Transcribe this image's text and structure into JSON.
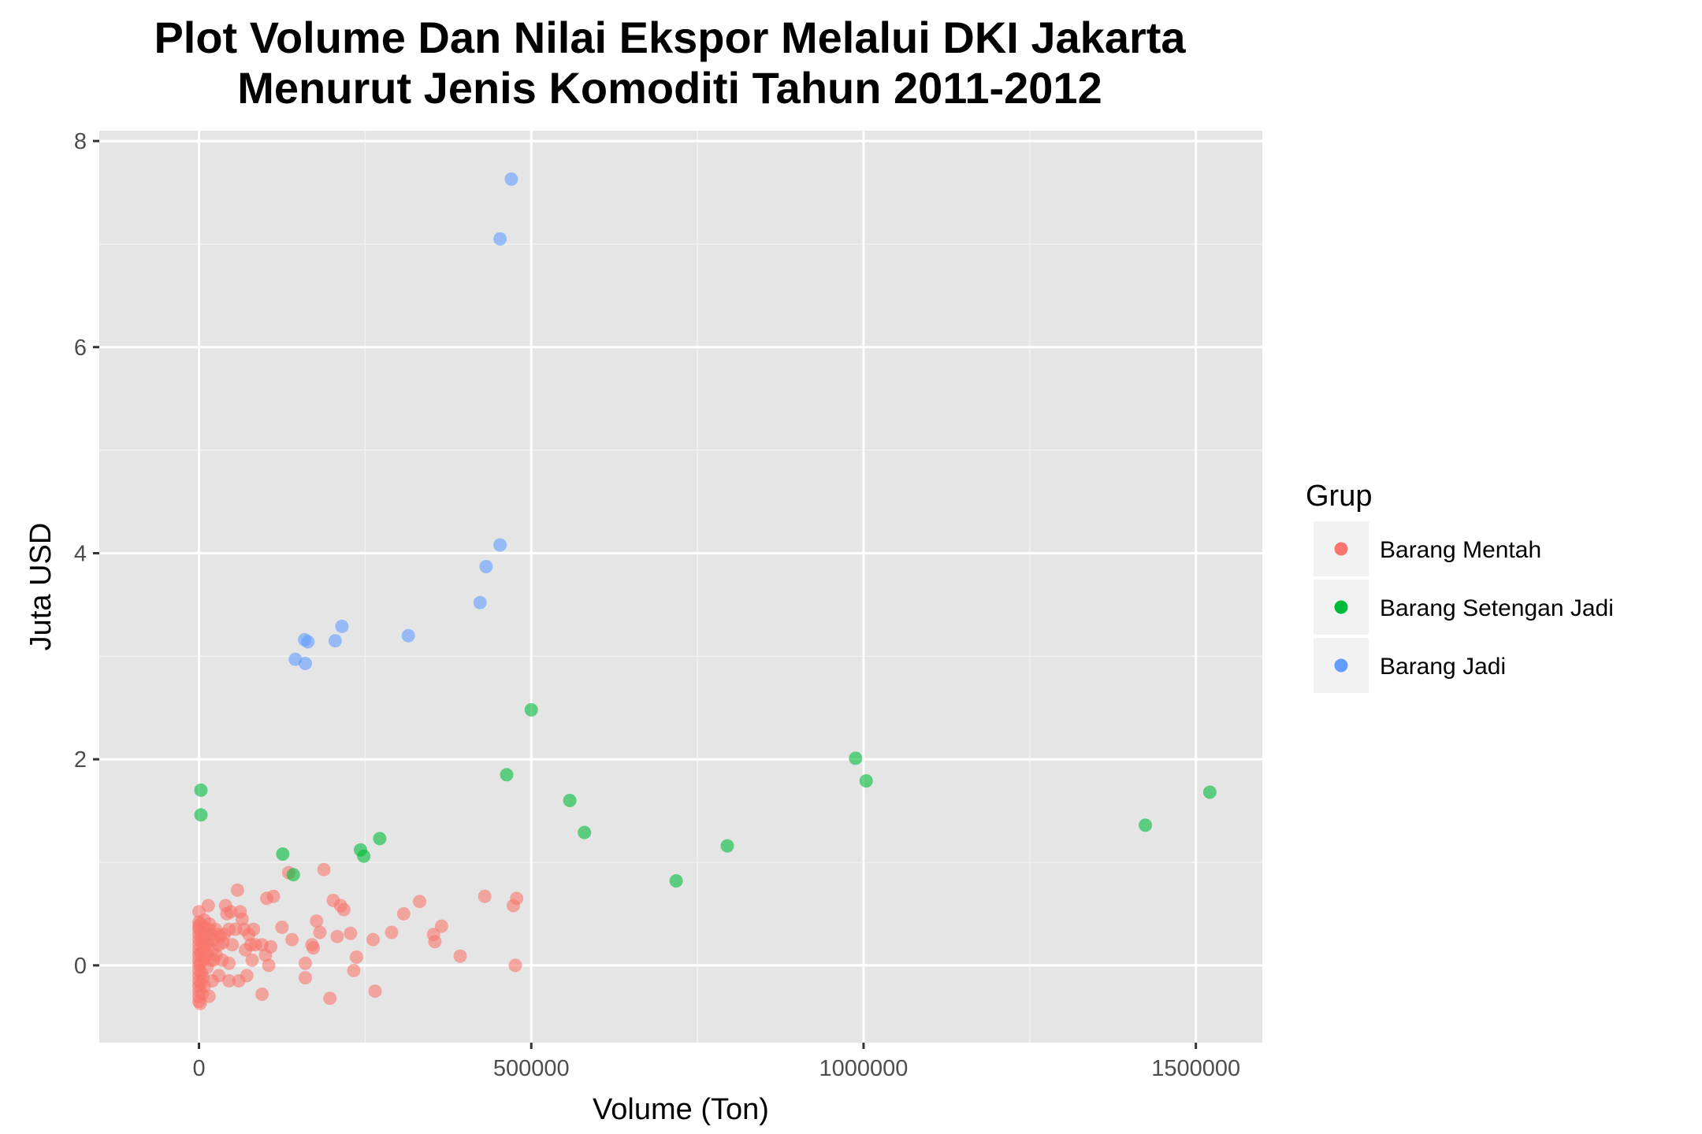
{
  "chart_data": {
    "type": "scatter",
    "title_lines": [
      "Plot Volume Dan Nilai Ekspor Melalui DKI Jakarta",
      "Menurut Jenis Komoditi Tahun 2011-2012"
    ],
    "xlabel": "Volume (Ton)",
    "ylabel": "Juta USD",
    "xlim": [
      -150000,
      1600000
    ],
    "ylim": [
      -0.75,
      8.1
    ],
    "x_ticks": [
      0,
      500000,
      1000000,
      1500000
    ],
    "x_tick_labels": [
      "0",
      "500000",
      "1000000",
      "1500000"
    ],
    "y_ticks": [
      0,
      2,
      4,
      6,
      8
    ],
    "y_tick_labels": [
      "0",
      "2",
      "4",
      "6",
      "8"
    ],
    "grid": true,
    "background": "#e5e5e5",
    "legend": {
      "title": "Grup",
      "position": "right"
    },
    "series": [
      {
        "name": "Barang Mentah",
        "color": "#F8766D",
        "points": [
          [
            0,
            0.52
          ],
          [
            0,
            0.42
          ],
          [
            0,
            0.38
          ],
          [
            0,
            0.35
          ],
          [
            0,
            0.3
          ],
          [
            0,
            0.25
          ],
          [
            0,
            0.2
          ],
          [
            0,
            0.15
          ],
          [
            0,
            0.1
          ],
          [
            0,
            0.05
          ],
          [
            0,
            0.0
          ],
          [
            0,
            -0.05
          ],
          [
            0,
            -0.1
          ],
          [
            0,
            -0.15
          ],
          [
            0,
            -0.2
          ],
          [
            0,
            -0.25
          ],
          [
            0,
            -0.3
          ],
          [
            0,
            -0.35
          ],
          [
            2000,
            0.4
          ],
          [
            3000,
            0.32
          ],
          [
            4000,
            0.27
          ],
          [
            5000,
            0.22
          ],
          [
            3000,
            0.12
          ],
          [
            2000,
            0.02
          ],
          [
            4000,
            -0.08
          ],
          [
            3000,
            -0.18
          ],
          [
            5000,
            -0.28
          ],
          [
            2000,
            -0.37
          ],
          [
            6000,
            0.05
          ],
          [
            6000,
            -0.12
          ],
          [
            8000,
            0.44
          ],
          [
            9000,
            0.36
          ],
          [
            10000,
            0.3
          ],
          [
            11000,
            0.25
          ],
          [
            7000,
            0.16
          ],
          [
            9000,
            0.08
          ],
          [
            12000,
            -0.02
          ],
          [
            8000,
            -0.2
          ],
          [
            10000,
            0.2
          ],
          [
            13000,
            0.1
          ],
          [
            15000,
            0.35
          ],
          [
            14000,
            0.2
          ],
          [
            14000,
            0.58
          ],
          [
            16000,
            0.4
          ],
          [
            18000,
            0.3
          ],
          [
            15000,
            -0.3
          ],
          [
            20000,
            0.15
          ],
          [
            22000,
            0.25
          ],
          [
            25000,
            0.35
          ],
          [
            26000,
            0.1
          ],
          [
            28000,
            0.3
          ],
          [
            30000,
            0.2
          ],
          [
            32000,
            0.28
          ],
          [
            35000,
            0.05
          ],
          [
            36000,
            0.22
          ],
          [
            38000,
            0.3
          ],
          [
            30000,
            -0.1
          ],
          [
            20000,
            -0.15
          ],
          [
            18000,
            0.05
          ],
          [
            22000,
            0.05
          ],
          [
            40000,
            0.58
          ],
          [
            42000,
            0.5
          ],
          [
            45000,
            0.35
          ],
          [
            50000,
            0.2
          ],
          [
            45000,
            0.02
          ],
          [
            45000,
            -0.15
          ],
          [
            48000,
            0.52
          ],
          [
            55000,
            0.35
          ],
          [
            58000,
            0.73
          ],
          [
            62000,
            0.52
          ],
          [
            60000,
            -0.15
          ],
          [
            65000,
            0.45
          ],
          [
            68000,
            0.35
          ],
          [
            70000,
            0.15
          ],
          [
            72000,
            -0.1
          ],
          [
            75000,
            0.3
          ],
          [
            78000,
            0.2
          ],
          [
            80000,
            0.05
          ],
          [
            82000,
            0.35
          ],
          [
            85000,
            0.2
          ],
          [
            95000,
            0.2
          ],
          [
            95000,
            -0.28
          ],
          [
            100000,
            0.1
          ],
          [
            102000,
            0.65
          ],
          [
            105000,
            0.0
          ],
          [
            108000,
            0.18
          ],
          [
            112000,
            0.67
          ],
          [
            125000,
            0.37
          ],
          [
            135000,
            0.9
          ],
          [
            140000,
            0.25
          ],
          [
            160000,
            0.02
          ],
          [
            160000,
            -0.12
          ],
          [
            170000,
            0.2
          ],
          [
            172000,
            0.17
          ],
          [
            177000,
            0.43
          ],
          [
            182000,
            0.32
          ],
          [
            188000,
            0.93
          ],
          [
            197000,
            -0.32
          ],
          [
            202000,
            0.63
          ],
          [
            208000,
            0.28
          ],
          [
            213000,
            0.58
          ],
          [
            218000,
            0.54
          ],
          [
            228000,
            0.31
          ],
          [
            233000,
            -0.05
          ],
          [
            237000,
            0.08
          ],
          [
            262000,
            0.25
          ],
          [
            265000,
            -0.25
          ],
          [
            290000,
            0.32
          ],
          [
            308000,
            0.5
          ],
          [
            332000,
            0.62
          ],
          [
            353000,
            0.3
          ],
          [
            355000,
            0.23
          ],
          [
            365000,
            0.38
          ],
          [
            393000,
            0.09
          ],
          [
            430000,
            0.67
          ],
          [
            473000,
            0.58
          ],
          [
            476000,
            0.0
          ],
          [
            478000,
            0.65
          ]
        ]
      },
      {
        "name": "Barang Setengan Jadi",
        "color": "#00BA38",
        "points": [
          [
            3000,
            1.7
          ],
          [
            3000,
            1.46
          ],
          [
            126000,
            1.08
          ],
          [
            142000,
            0.88
          ],
          [
            243000,
            1.12
          ],
          [
            248000,
            1.06
          ],
          [
            272000,
            1.23
          ],
          [
            463000,
            1.85
          ],
          [
            500000,
            2.48
          ],
          [
            558000,
            1.6
          ],
          [
            580000,
            1.29
          ],
          [
            718000,
            0.82
          ],
          [
            795000,
            1.16
          ],
          [
            988000,
            2.01
          ],
          [
            1004000,
            1.79
          ],
          [
            1424000,
            1.36
          ],
          [
            1521000,
            1.68
          ]
        ]
      },
      {
        "name": "Barang Jadi",
        "color": "#619CFF",
        "points": [
          [
            145000,
            2.97
          ],
          [
            159000,
            3.16
          ],
          [
            160000,
            2.93
          ],
          [
            164000,
            3.14
          ],
          [
            205000,
            3.15
          ],
          [
            215000,
            3.29
          ],
          [
            315000,
            3.2
          ],
          [
            423000,
            3.52
          ],
          [
            432000,
            3.87
          ],
          [
            453000,
            4.08
          ],
          [
            453000,
            7.05
          ],
          [
            470000,
            7.63
          ]
        ]
      }
    ]
  }
}
